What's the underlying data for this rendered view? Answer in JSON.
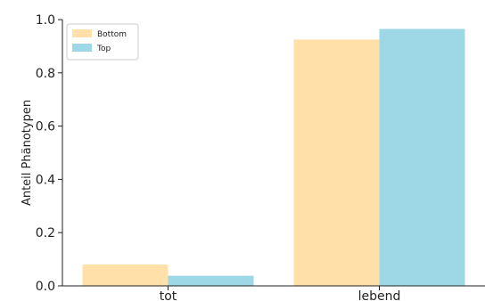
{
  "chart_data": {
    "type": "bar",
    "categories": [
      "tot",
      "lebend"
    ],
    "series": [
      {
        "name": "Bottom",
        "values": [
          0.08,
          0.925
        ],
        "color": "#FFE0A8"
      },
      {
        "name": "Top",
        "values": [
          0.038,
          0.965
        ],
        "color": "#9ED8E6"
      }
    ],
    "ylabel": "Anteil Phänotypen",
    "xlabel": "",
    "ylim": [
      0,
      1.0
    ],
    "yticks": [
      "0.0",
      "0.2",
      "0.4",
      "0.6",
      "0.8",
      "1.0"
    ],
    "grid": false,
    "legend_position": "top-left"
  }
}
